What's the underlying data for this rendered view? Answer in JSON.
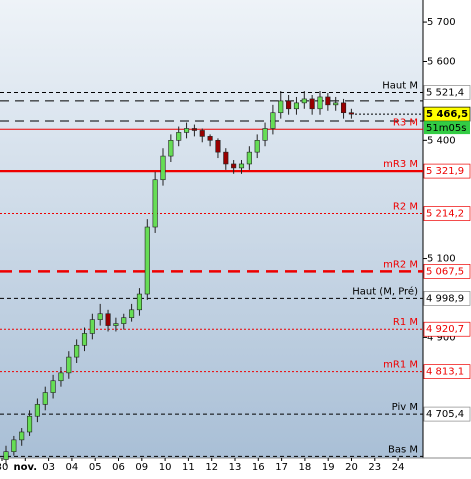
{
  "chart_data": {
    "type": "candlestick",
    "categories": [
      "30",
      "nov.",
      "03",
      "04",
      "05",
      "06",
      "09",
      "10",
      "11",
      "12",
      "13",
      "16",
      "17",
      "18",
      "19",
      "20",
      "23",
      "24"
    ],
    "ylim": [
      4594,
      5756
    ],
    "yticks": [
      {
        "value": 4900,
        "label": "4 900"
      },
      {
        "value": 5100,
        "label": "5 100"
      },
      {
        "value": 5400,
        "label": "5 400"
      },
      {
        "value": 5600,
        "label": "5 600"
      },
      {
        "value": 5700,
        "label": "5 700"
      }
    ],
    "up_color": "#66dd55",
    "down_color": "#990000",
    "open": [
      4590,
      4610,
      4640,
      4660,
      4700,
      4730,
      4760,
      4790,
      4810,
      4850,
      4880,
      4910,
      4945,
      4960,
      4930,
      4935,
      4950,
      4970,
      5010,
      5180,
      5300,
      5360,
      5400,
      5420,
      5430,
      5425,
      5410,
      5400,
      5370,
      5340,
      5330,
      5340,
      5370,
      5400,
      5430,
      5470,
      5500,
      5480,
      5495,
      5505,
      5480,
      5510,
      5490,
      5495,
      5470
    ],
    "high": [
      4625,
      4650,
      4670,
      4715,
      4745,
      4775,
      4805,
      4825,
      4865,
      4895,
      4925,
      4960,
      4985,
      4970,
      4950,
      4960,
      4985,
      5025,
      5200,
      5320,
      5380,
      5415,
      5435,
      5445,
      5440,
      5430,
      5415,
      5405,
      5380,
      5350,
      5350,
      5385,
      5415,
      5445,
      5490,
      5525,
      5515,
      5510,
      5525,
      5515,
      5525,
      5520,
      5510,
      5505,
      5480
    ],
    "low": [
      4575,
      4600,
      4625,
      4650,
      4685,
      4715,
      4745,
      4775,
      4795,
      4835,
      4865,
      4895,
      4930,
      4915,
      4915,
      4920,
      4940,
      4955,
      4995,
      5165,
      5285,
      5345,
      5385,
      5405,
      5410,
      5395,
      5385,
      5355,
      5325,
      5315,
      5315,
      5325,
      5355,
      5385,
      5415,
      5455,
      5465,
      5465,
      5480,
      5465,
      5465,
      5475,
      5475,
      5455,
      5455
    ],
    "close": [
      4610,
      4640,
      4660,
      4700,
      4730,
      4760,
      4790,
      4810,
      4850,
      4880,
      4910,
      4945,
      4960,
      4930,
      4935,
      4950,
      4970,
      5010,
      5180,
      5300,
      5360,
      5400,
      5420,
      5430,
      5425,
      5410,
      5400,
      5370,
      5340,
      5330,
      5340,
      5370,
      5400,
      5430,
      5470,
      5500,
      5480,
      5495,
      5505,
      5480,
      5510,
      5490,
      5495,
      5470,
      5466.5
    ],
    "levels": [
      {
        "name": "Haut M",
        "value": 5521.4,
        "value_label": "5 521,4",
        "color": "#000000",
        "style": "dashed"
      },
      {
        "name": "R3 M",
        "value": 5428,
        "color": "#ee0000",
        "style": "solid"
      },
      {
        "name": "mR3 M",
        "value": 5321.9,
        "value_label": "5 321,9",
        "color": "#ee0000",
        "style": "thick"
      },
      {
        "name": "R2 M",
        "value": 5214.2,
        "value_label": "5 214,2",
        "color": "#ee0000",
        "style": "dotted"
      },
      {
        "name": "mR2 M",
        "value": 5067.5,
        "value_label": "5 067,5",
        "color": "#ee0000",
        "style": "thick-dashed"
      },
      {
        "name": "Haut (M, Pré)",
        "value": 4998.9,
        "value_label": "4 998,9",
        "color": "#000000",
        "style": "dashed"
      },
      {
        "name": "R1 M",
        "value": 4920.7,
        "value_label": "4 920,7",
        "color": "#ee0000",
        "style": "dotted"
      },
      {
        "name": "mR1 M",
        "value": 4813.1,
        "value_label": "4 813,1",
        "color": "#ee0000",
        "style": "dotted"
      },
      {
        "name": "Piv M",
        "value": 4705.4,
        "value_label": "4 705,4",
        "color": "#000000",
        "style": "dashed"
      },
      {
        "name": "Bas M",
        "value": 4598,
        "color": "#000000",
        "style": "dashed"
      }
    ],
    "extra_lines": [
      5500,
      5449
    ],
    "current_price": {
      "value": 5466.5,
      "label": "5 466,5",
      "timer": "51m05s"
    }
  }
}
